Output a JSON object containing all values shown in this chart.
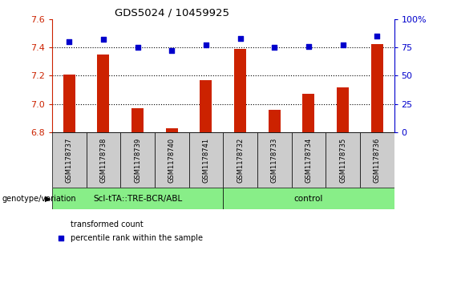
{
  "title": "GDS5024 / 10459925",
  "samples": [
    "GSM1178737",
    "GSM1178738",
    "GSM1178739",
    "GSM1178740",
    "GSM1178741",
    "GSM1178732",
    "GSM1178733",
    "GSM1178734",
    "GSM1178735",
    "GSM1178736"
  ],
  "bar_values": [
    7.21,
    7.35,
    6.97,
    6.83,
    7.17,
    7.39,
    6.96,
    7.07,
    7.12,
    7.42
  ],
  "dot_values": [
    80,
    82,
    75,
    72,
    77,
    83,
    75,
    76,
    77,
    85
  ],
  "ylim_left": [
    6.8,
    7.6
  ],
  "ylim_right": [
    0,
    100
  ],
  "yticks_left": [
    6.8,
    7.0,
    7.2,
    7.4,
    7.6
  ],
  "yticks_right": [
    0,
    25,
    50,
    75,
    100
  ],
  "bar_color": "#cc2200",
  "dot_color": "#0000cc",
  "group1_label": "ScI-tTA::TRE-BCR/ABL",
  "group2_label": "control",
  "group1_count": 5,
  "group2_count": 5,
  "group_bg_color": "#88ee88",
  "sample_bg_color": "#cccccc",
  "legend_bar_label": "transformed count",
  "legend_dot_label": "percentile rank within the sample",
  "genotype_label": "genotype/variation",
  "dotted_line_color": "#000000",
  "right_axis_color": "#0000cc",
  "left_axis_color": "#cc2200",
  "bar_width": 0.35
}
